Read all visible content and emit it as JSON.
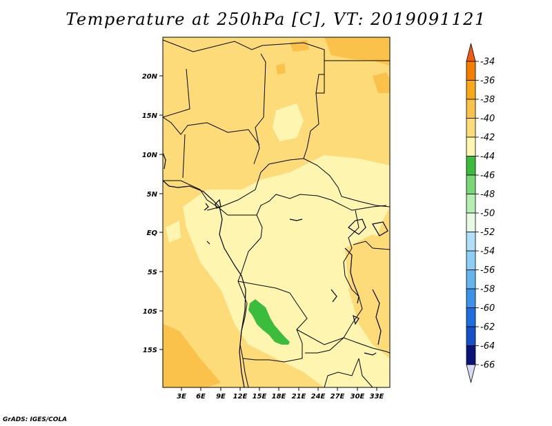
{
  "title": "Temperature at 250hPa [C], VT: 2019091121",
  "credit": "GrADS: IGES/COLA",
  "map": {
    "lat_labels": [
      "20N",
      "15N",
      "10N",
      "5N",
      "EQ",
      "5S",
      "10S",
      "15S"
    ],
    "lon_labels": [
      "3E",
      "6E",
      "9E",
      "12E",
      "15E",
      "18E",
      "21E",
      "24E",
      "27E",
      "30E",
      "33E"
    ]
  },
  "colorbar": {
    "labels": [
      "-34",
      "-36",
      "-38",
      "-40",
      "-42",
      "-44",
      "-46",
      "-48",
      "-50",
      "-52",
      "-54",
      "-56",
      "-58",
      "-60",
      "-62",
      "-64",
      "-66"
    ],
    "colors": [
      "#f05a14",
      "#f57d00",
      "#f8a818",
      "#fac24a",
      "#fcdb78",
      "#fdf5b0",
      "#3cbc3c",
      "#78d876",
      "#b4eeb0",
      "#e8fae4",
      "#b0e0f8",
      "#8ccff6",
      "#64b4f0",
      "#3c91e8",
      "#1e6ee0",
      "#1450c8",
      "#0a1478",
      "#d8daf6"
    ]
  }
}
